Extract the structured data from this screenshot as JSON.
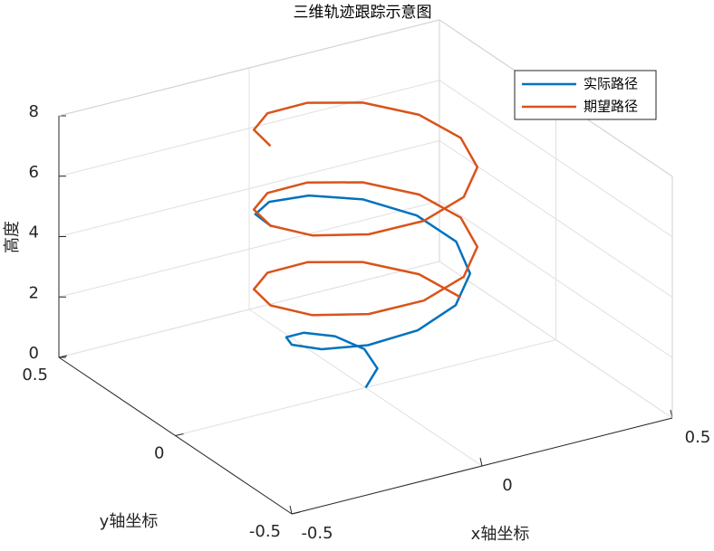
{
  "chart_data": {
    "type": "line3d",
    "title": "三维轨迹跟踪示意图",
    "x_label": "x轴坐标",
    "y_label": "y轴坐标",
    "z_label": "高度",
    "xlim": [
      -0.5,
      0.5
    ],
    "ylim": [
      -0.5,
      0.5
    ],
    "zlim": [
      0,
      8
    ],
    "xticks": [
      -0.5,
      0,
      0.5
    ],
    "yticks": [
      -0.5,
      0,
      0.5
    ],
    "zticks": [
      0,
      2,
      4,
      6,
      8
    ],
    "grid": true,
    "legend_position": "upper-right",
    "series": [
      {
        "name": "实际路径",
        "color": "#0072bd",
        "x": [
          0,
          0.048,
          0.049,
          0,
          -0.079,
          -0.154,
          -0.194,
          -0.179,
          -0.108,
          0,
          0.115,
          0.203,
          0.238,
          0.208,
          0.122,
          0,
          -0.123,
          -0.214,
          -0.247
        ],
        "y": [
          0,
          0.028,
          0.085,
          0.132,
          0.137,
          0.089,
          0,
          -0.104,
          -0.187,
          -0.224,
          -0.199,
          -0.117,
          0,
          0.12,
          0.21,
          0.244,
          0.213,
          0.124,
          0
        ],
        "z": [
          0,
          0.34,
          0.68,
          1.02,
          1.36,
          1.7,
          2.04,
          2.38,
          2.72,
          3.06,
          3.4,
          3.74,
          4.08,
          4.42,
          4.76,
          5.1,
          5.44,
          5.78,
          6.12
        ]
      },
      {
        "name": "期望路径",
        "color": "#d95319",
        "x": [
          0.25,
          0.217,
          0.125,
          0,
          -0.125,
          -0.217,
          -0.25,
          -0.217,
          -0.125,
          0,
          0.125,
          0.217,
          0.25,
          0.217,
          0.125,
          0,
          -0.125,
          -0.217,
          -0.25,
          -0.217,
          -0.125,
          0,
          0.125,
          0.217,
          0.25,
          0.217,
          0.125,
          0,
          -0.125,
          -0.217,
          -0.25
        ],
        "y": [
          0,
          0.125,
          0.217,
          0.25,
          0.217,
          0.125,
          0,
          -0.125,
          -0.217,
          -0.25,
          -0.217,
          -0.125,
          0,
          0.125,
          0.217,
          0.25,
          0.217,
          0.125,
          0,
          -0.125,
          -0.217,
          -0.25,
          -0.217,
          -0.125,
          0,
          0.125,
          0.217,
          0.25,
          0.217,
          0.125,
          0
        ],
        "z": [
          2.2,
          2.42,
          2.64,
          2.86,
          3.08,
          3.3,
          3.52,
          3.74,
          3.96,
          4.18,
          4.4,
          4.62,
          4.84,
          5.06,
          5.28,
          5.5,
          5.72,
          5.94,
          6.16,
          6.38,
          6.6,
          6.82,
          7.04,
          7.26,
          7.48,
          7.7,
          7.92,
          8.14,
          8.36,
          8.58,
          8.8
        ]
      }
    ]
  }
}
